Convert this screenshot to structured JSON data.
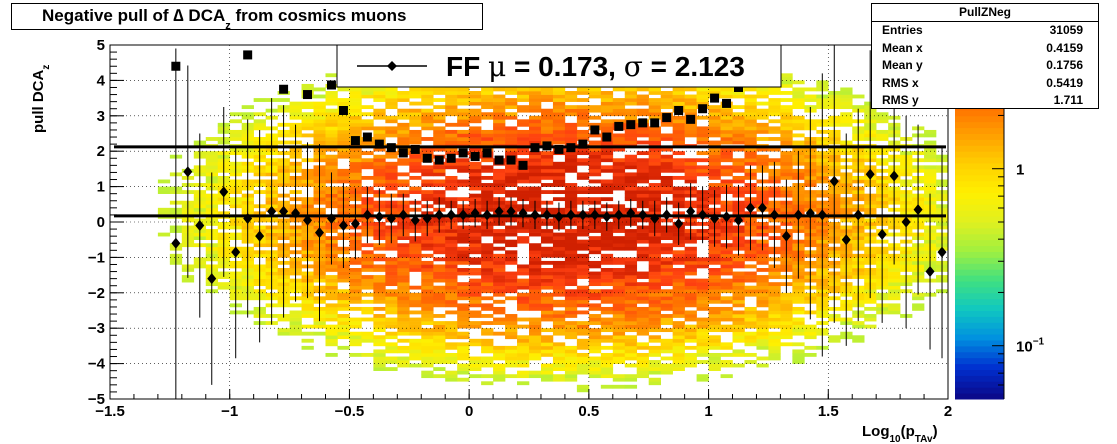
{
  "title": {
    "prefix": "Negative pull of ",
    "delta": "∆",
    "mid": " DCA",
    "sub": "z",
    "suffix": " from cosmics muons"
  },
  "stats": {
    "name": "PullZNeg",
    "rows": [
      {
        "key": "Entries",
        "value": "31059"
      },
      {
        "key": "Mean x",
        "value": "0.4159"
      },
      {
        "key": "Mean y",
        "value": "0.1756"
      },
      {
        "key": "RMS x",
        "value": "0.5419"
      },
      {
        "key": "RMS y",
        "value": "1.711"
      }
    ]
  },
  "legend": {
    "text_left": "FF ",
    "mu": "μ",
    "text_mid": " =  0.173, ",
    "sigma": "σ",
    "text_right": " =   2.123"
  },
  "colors": {
    "frame": "#000000",
    "markers": "#000000",
    "palette": [
      "#0a0a8c",
      "#0030d0",
      "#0090e0",
      "#10c8c0",
      "#40e080",
      "#a0f040",
      "#e0f020",
      "#fff000",
      "#ffd000",
      "#ffa000",
      "#ff7000",
      "#ff4010",
      "#d02000"
    ]
  },
  "chart_data": {
    "type": "heatmap",
    "title": "Negative pull of ∆ DCA_z from cosmics muons",
    "xlabel": "Log10(pT Av)",
    "xlabel_parts": {
      "main": "Log",
      "sub1": "10",
      "open": "(p",
      "sub2": "TAv",
      "close": ")"
    },
    "ylabel": "pull DCA_z",
    "ylabel_parts": {
      "main": "pull DCA",
      "sub": "z"
    },
    "xlim": [
      -1.5,
      2
    ],
    "ylim": [
      -5,
      5
    ],
    "x_ticks": [
      -1.5,
      -1,
      -0.5,
      0,
      0.5,
      1,
      1.5,
      2
    ],
    "x_tick_labels": [
      "−1.5",
      "−1",
      "−0.5",
      "0",
      "0.5",
      "1",
      "1.5",
      "2"
    ],
    "y_ticks": [
      -5,
      -4,
      -3,
      -2,
      -1,
      0,
      1,
      2,
      3,
      4,
      5
    ],
    "y_tick_labels": [
      "−5",
      "−4",
      "−3",
      "−2",
      "−1",
      "0",
      "1",
      "2",
      "3",
      "4",
      "5"
    ],
    "grid": true,
    "z_scale": "log",
    "z_range": [
      0.05,
      5
    ],
    "z_tick_labels": [
      {
        "value": 1,
        "label": "1"
      },
      {
        "value": 0.1,
        "label": "10",
        "sup": "−1"
      }
    ],
    "density": {
      "mean_x": 0.4159,
      "mean_y": 0.1756,
      "rms_x": 0.5419,
      "rms_y": 1.711
    },
    "reference_lines": [
      {
        "name": "mean",
        "y": 0.173
      },
      {
        "name": "sigma",
        "y": 2.123
      }
    ],
    "series": [
      {
        "name": "mean",
        "marker": "diamond",
        "points": [
          [
            -1.225,
            -0.6
          ],
          [
            -1.175,
            1.42
          ],
          [
            -1.125,
            -0.1
          ],
          [
            -1.075,
            -1.6
          ],
          [
            -1.025,
            0.85
          ],
          [
            -0.975,
            -0.85
          ],
          [
            -0.925,
            0.1
          ],
          [
            -0.875,
            -0.4
          ],
          [
            -0.825,
            0.3
          ],
          [
            -0.775,
            0.3
          ],
          [
            -0.725,
            0.25
          ],
          [
            -0.675,
            0.05
          ],
          [
            -0.625,
            -0.3
          ],
          [
            -0.575,
            0.1
          ],
          [
            -0.525,
            -0.1
          ],
          [
            -0.475,
            -0.05
          ],
          [
            -0.425,
            0.2
          ],
          [
            -0.375,
            0.15
          ],
          [
            -0.325,
            0.1
          ],
          [
            -0.275,
            0.2
          ],
          [
            -0.225,
            0.05
          ],
          [
            -0.175,
            0.1
          ],
          [
            -0.125,
            0.2
          ],
          [
            -0.075,
            0.2
          ],
          [
            -0.025,
            0.2
          ],
          [
            0.025,
            0.25
          ],
          [
            0.075,
            0.2
          ],
          [
            0.125,
            0.3
          ],
          [
            0.175,
            0.3
          ],
          [
            0.225,
            0.25
          ],
          [
            0.275,
            0.2
          ],
          [
            0.325,
            0.2
          ],
          [
            0.375,
            0.15
          ],
          [
            0.425,
            0.2
          ],
          [
            0.475,
            0.2
          ],
          [
            0.525,
            0.2
          ],
          [
            0.575,
            0.15
          ],
          [
            0.625,
            0.2
          ],
          [
            0.675,
            0.25
          ],
          [
            0.725,
            0.2
          ],
          [
            0.775,
            0.1
          ],
          [
            0.825,
            0.2
          ],
          [
            0.875,
            -0.05
          ],
          [
            0.925,
            0.3
          ],
          [
            0.975,
            0.2
          ],
          [
            1.025,
            0.1
          ],
          [
            1.075,
            0.15
          ],
          [
            1.125,
            0.05
          ],
          [
            1.175,
            0.4
          ],
          [
            1.225,
            0.4
          ],
          [
            1.275,
            0.2
          ],
          [
            1.325,
            -0.4
          ],
          [
            1.375,
            0.2
          ],
          [
            1.425,
            0.25
          ],
          [
            1.475,
            0.2
          ],
          [
            1.525,
            1.15
          ],
          [
            1.575,
            -0.5
          ],
          [
            1.625,
            0.2
          ],
          [
            1.675,
            1.35
          ],
          [
            1.725,
            -0.35
          ],
          [
            1.775,
            1.3
          ],
          [
            1.825,
            0
          ],
          [
            1.875,
            0.35
          ],
          [
            1.925,
            -1.4
          ],
          [
            1.975,
            -0.85
          ]
        ],
        "errors": [
          5.5,
          3,
          2.6,
          3,
          2.4,
          3,
          2.8,
          3,
          3.2,
          3,
          2.5,
          2.2,
          2.5,
          1.3,
          1.2,
          1,
          0.8,
          0.8,
          0.7,
          0.6,
          0.6,
          0.5,
          0.5,
          0.4,
          0.4,
          0.4,
          0.4,
          0.4,
          0.4,
          0.4,
          0.4,
          0.4,
          0.4,
          0.4,
          0.4,
          0.4,
          0.4,
          0.4,
          0.4,
          0.4,
          0.5,
          0.5,
          0.6,
          0.8,
          0.8,
          0.8,
          0.9,
          1,
          1.2,
          1.2,
          1.5,
          1.6,
          1.8,
          3,
          4,
          4,
          3,
          3,
          3.5,
          2.5,
          2.5,
          3,
          2.4,
          2.2,
          3
        ]
      },
      {
        "name": "sigma",
        "marker": "square",
        "points": [
          [
            -1.225,
            4.4
          ],
          [
            -0.925,
            4.72
          ],
          [
            -0.775,
            3.75
          ],
          [
            -0.675,
            3.6
          ],
          [
            -0.575,
            3.87
          ],
          [
            -0.525,
            3.15
          ],
          [
            -0.475,
            2.3
          ],
          [
            -0.425,
            2.4
          ],
          [
            -0.375,
            2.2
          ],
          [
            -0.325,
            2.1
          ],
          [
            -0.275,
            1.95
          ],
          [
            -0.225,
            2.05
          ],
          [
            -0.175,
            1.8
          ],
          [
            -0.125,
            1.75
          ],
          [
            -0.075,
            1.8
          ],
          [
            -0.025,
            1.95
          ],
          [
            0.025,
            1.85
          ],
          [
            0.075,
            1.95
          ],
          [
            0.125,
            1.75
          ],
          [
            0.175,
            1.75
          ],
          [
            0.225,
            1.6
          ],
          [
            0.275,
            2.1
          ],
          [
            0.325,
            2.15
          ],
          [
            0.375,
            2.05
          ],
          [
            0.425,
            2.1
          ],
          [
            0.475,
            2.2
          ],
          [
            0.525,
            2.6
          ],
          [
            0.575,
            2.4
          ],
          [
            0.625,
            2.7
          ],
          [
            0.675,
            2.75
          ],
          [
            0.725,
            2.8
          ],
          [
            0.775,
            2.8
          ],
          [
            0.825,
            2.95
          ],
          [
            0.875,
            3.15
          ],
          [
            0.925,
            2.9
          ],
          [
            0.975,
            3.2
          ],
          [
            1.025,
            3.5
          ],
          [
            1.075,
            3.35
          ],
          [
            1.125,
            3.8
          ]
        ]
      }
    ]
  }
}
